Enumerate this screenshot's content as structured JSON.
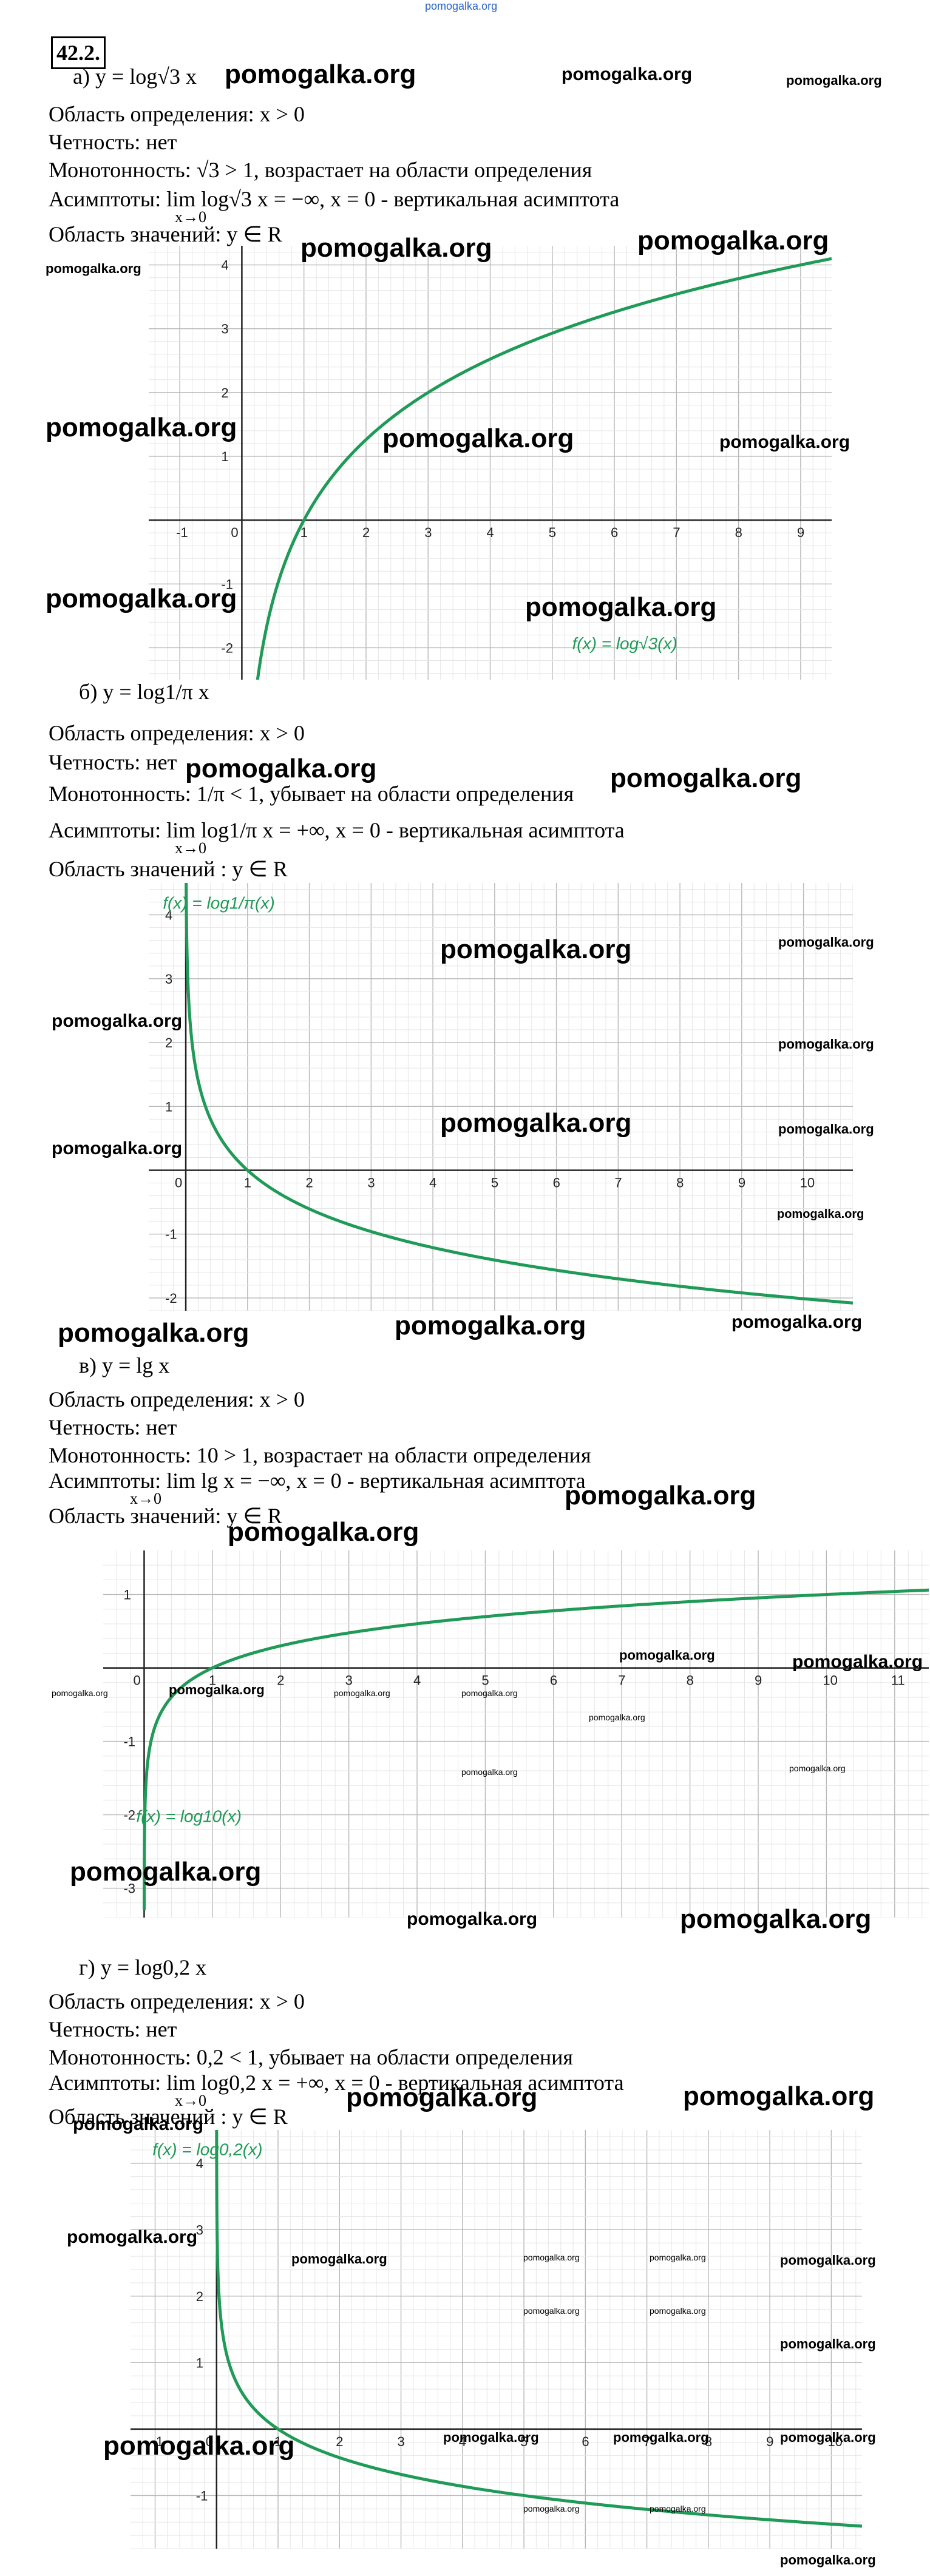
{
  "top_watermark": "pomogalka.org",
  "problem_number": "42.2.",
  "watermarks": {
    "big": "pomogalka.org",
    "mid": "pomogalka.org",
    "small": "pomogalka.org",
    "tiny": "pomogalka.org"
  },
  "parts": [
    {
      "label": "а)",
      "function": "y = log√3 x",
      "domain": "Область определения: x > 0",
      "parity": "Четность: нет",
      "monotonicity": "Монотонность: √3 > 1, возрастает на области определения",
      "asymptotes": "Асимптоты: lim log√3 x = −∞, x = 0 - вертикальная асимптота",
      "limit_sub": "x→0",
      "range": "Область значений: y ∈ R"
    },
    {
      "label": "б)",
      "function": "y = log1/π x",
      "domain": "Область определения: x > 0",
      "parity": "Четность: нет",
      "monotonicity": "Монотонность: 1/π < 1, убывает на области определения",
      "asymptotes": "Асимптоты: lim log1/π x = +∞, x = 0 - вертикальная асимптота",
      "limit_sub": "x→0",
      "range": "Область значений : y ∈ R"
    },
    {
      "label": "в)",
      "function": "y = lg x",
      "domain": "Область определения: x > 0",
      "parity": "Четность: нет",
      "monotonicity": "Монотонность: 10 > 1, возрастает на области определения",
      "asymptotes": "Асимптоты: lim lg x = −∞, x = 0 - вертикальная асимптота",
      "limit_sub": "x→0",
      "range": "Область значений: y ∈ R"
    },
    {
      "label": "г)",
      "function": "y = log0,2 x",
      "domain": "Область определения: x > 0",
      "parity": "Четность: нет",
      "monotonicity": "Монотонность: 0,2 < 1, убывает на области определения",
      "asymptotes": "Асимптоты: lim log0,2 x = +∞, x = 0 - вертикальная асимптота",
      "limit_sub": "x→0",
      "range": "Область значений : y ∈ R"
    }
  ],
  "colors": {
    "curve": "#1f9a57",
    "grid": "#d0d0d0",
    "axis": "#222222"
  },
  "chart_data": [
    {
      "type": "line",
      "legend": "f(x) = log√3(x)",
      "xlim": [
        -1.5,
        9.5
      ],
      "ylim": [
        -2.5,
        4.3
      ],
      "x_ticks": [
        -1,
        0,
        1,
        2,
        3,
        4,
        5,
        6,
        7,
        8,
        9
      ],
      "y_ticks": [
        -2,
        -1,
        1,
        2,
        3,
        4
      ],
      "base": 1.7320508,
      "series": [
        {
          "x": [
            0.15,
            0.33,
            0.5,
            1,
            2,
            3,
            4,
            5,
            6,
            7,
            8,
            9
          ],
          "y": [
            -3.45,
            -2.0,
            -1.26,
            0,
            1.26,
            2,
            2.52,
            2.93,
            3.26,
            3.54,
            3.79,
            4.0
          ]
        }
      ]
    },
    {
      "type": "line",
      "legend": "f(x) = log1/π(x)",
      "xlim": [
        -0.6,
        10.8
      ],
      "ylim": [
        -2.2,
        4.5
      ],
      "x_ticks": [
        0,
        1,
        2,
        3,
        4,
        5,
        6,
        7,
        8,
        9,
        10
      ],
      "y_ticks": [
        -2,
        -1,
        1,
        2,
        3,
        4
      ],
      "base": 0.3183099,
      "series": [
        {
          "x": [
            0.02,
            0.05,
            0.1,
            0.2,
            0.5,
            1,
            2,
            4,
            6,
            8,
            10
          ],
          "y": [
            3.42,
            2.62,
            2.01,
            1.41,
            0.61,
            0,
            -0.61,
            -1.21,
            -1.57,
            -1.82,
            -2.01
          ]
        }
      ]
    },
    {
      "type": "line",
      "legend": "f(x) = log10(x)",
      "xlim": [
        -0.6,
        11.5
      ],
      "ylim": [
        -3.4,
        1.6
      ],
      "x_ticks": [
        0,
        1,
        2,
        3,
        4,
        5,
        6,
        7,
        8,
        9,
        10,
        11
      ],
      "y_ticks": [
        -3,
        -2,
        -1,
        1
      ],
      "base": 10,
      "series": [
        {
          "x": [
            0.001,
            0.01,
            0.1,
            0.5,
            1,
            2,
            4,
            6,
            8,
            10,
            11.5
          ],
          "y": [
            -3,
            -2,
            -1,
            -0.3,
            0,
            0.3,
            0.6,
            0.78,
            0.9,
            1,
            1.06
          ]
        }
      ]
    },
    {
      "type": "line",
      "legend": "f(x) = log0,2(x)",
      "xlim": [
        -1.4,
        10.5
      ],
      "ylim": [
        -1.8,
        4.5
      ],
      "x_ticks": [
        -1,
        0,
        1,
        2,
        3,
        4,
        5,
        6,
        7,
        8,
        9,
        10
      ],
      "y_ticks": [
        -1,
        1,
        2,
        3,
        4
      ],
      "base": 0.2,
      "series": [
        {
          "x": [
            0.001,
            0.01,
            0.1,
            0.5,
            1,
            2,
            4,
            6,
            8,
            10
          ],
          "y": [
            4.29,
            2.86,
            1.43,
            0.43,
            0,
            -0.43,
            -0.86,
            -1.11,
            -1.29,
            -1.43
          ]
        }
      ]
    }
  ]
}
